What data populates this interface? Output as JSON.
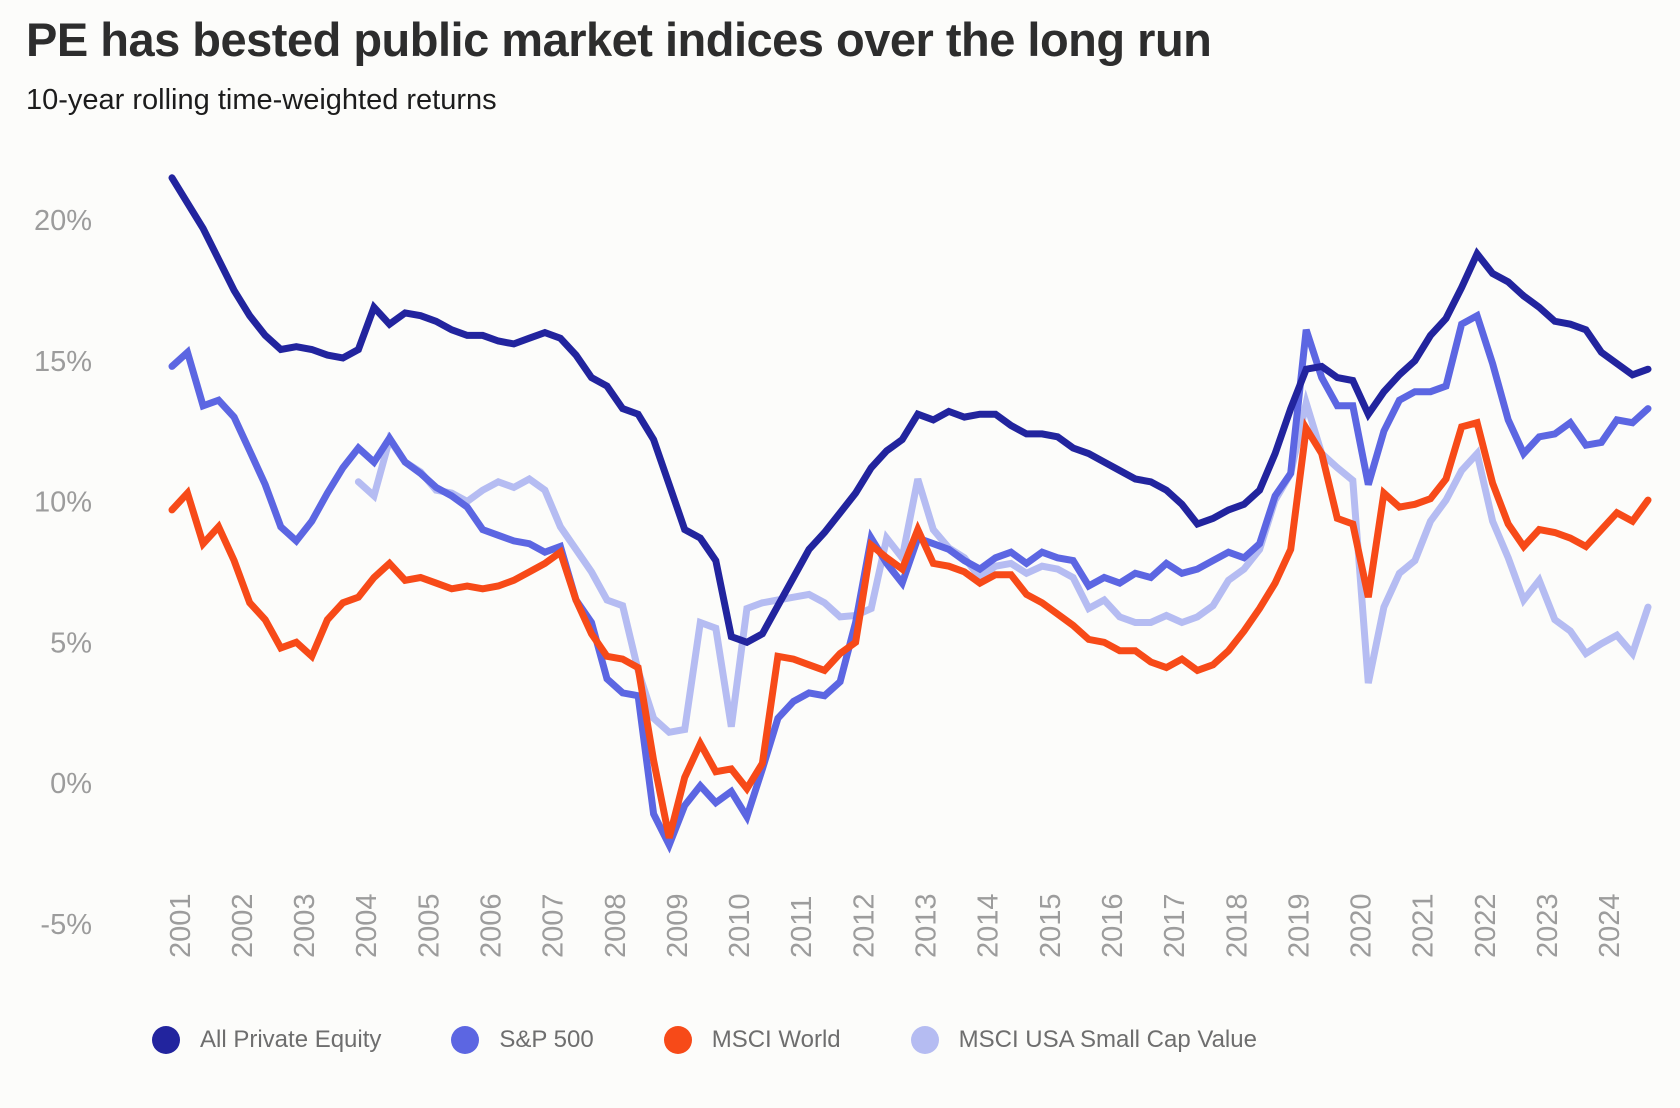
{
  "header": {
    "title": "PE has bested public market indices over the long run",
    "subtitle": "10-year rolling time-weighted returns"
  },
  "chart_data": {
    "type": "line",
    "title": "PE has bested public market indices over the long run",
    "subtitle": "10-year rolling time-weighted returns",
    "x_unit": "quarterly",
    "grid": false,
    "legend_position": "bottom",
    "ylim": [
      -5.5,
      22.5
    ],
    "y_axis": {
      "values": [
        20,
        15,
        10,
        5,
        0,
        -5
      ],
      "labels": [
        "20%",
        "15%",
        "10%",
        "5%",
        "0%",
        "-5%"
      ]
    },
    "x_axis": {
      "start_year": 2001,
      "end_year": 2024,
      "years": [
        2001,
        2002,
        2003,
        2004,
        2005,
        2006,
        2007,
        2008,
        2009,
        2010,
        2011,
        2012,
        2013,
        2014,
        2015,
        2016,
        2017,
        2018,
        2019,
        2020,
        2021,
        2022,
        2023,
        2024
      ]
    },
    "draw_order": [
      3,
      1,
      2,
      0
    ],
    "series": [
      {
        "id": "all-private-equity",
        "name": "All Private Equity",
        "color": "#22249e",
        "values": [
          21.5,
          20.6,
          19.7,
          18.6,
          17.5,
          16.6,
          15.9,
          15.4,
          15.5,
          15.4,
          15.2,
          15.1,
          15.4,
          16.9,
          16.3,
          16.7,
          16.6,
          16.4,
          16.1,
          15.9,
          15.9,
          15.7,
          15.6,
          15.8,
          16.0,
          15.8,
          15.2,
          14.4,
          14.1,
          13.3,
          13.1,
          12.2,
          10.6,
          9.0,
          8.7,
          7.9,
          5.2,
          5.0,
          5.3,
          6.3,
          7.3,
          8.3,
          8.9,
          9.6,
          10.3,
          11.2,
          11.8,
          12.2,
          13.1,
          12.9,
          13.2,
          13.0,
          13.1,
          13.1,
          12.7,
          12.4,
          12.4,
          12.3,
          11.9,
          11.7,
          11.4,
          11.1,
          10.8,
          10.7,
          10.4,
          9.9,
          9.2,
          9.4,
          9.7,
          9.9,
          10.4,
          11.7,
          13.3,
          14.7,
          14.8,
          14.4,
          14.3,
          13.1,
          13.9,
          14.5,
          15.0,
          15.9,
          16.5,
          17.6,
          18.8,
          18.1,
          17.8,
          17.3,
          16.9,
          16.4,
          16.3,
          16.1,
          15.3,
          14.9,
          14.5,
          14.7
        ]
      },
      {
        "id": "sp-500",
        "name": "S&P 500",
        "color": "#5c66e2",
        "values": [
          14.8,
          15.3,
          13.4,
          13.6,
          13.0,
          11.8,
          10.6,
          9.1,
          8.6,
          9.3,
          10.3,
          11.2,
          11.9,
          11.4,
          12.25,
          11.4,
          11.0,
          10.5,
          10.2,
          9.8,
          9.0,
          8.8,
          8.6,
          8.5,
          8.2,
          8.4,
          6.5,
          5.7,
          3.7,
          3.2,
          3.1,
          -1.1,
          -2.2,
          -0.8,
          -0.1,
          -0.7,
          -0.3,
          -1.2,
          0.5,
          2.3,
          2.9,
          3.2,
          3.1,
          3.6,
          5.7,
          8.7,
          7.8,
          7.1,
          8.7,
          8.5,
          8.3,
          7.9,
          7.6,
          8.0,
          8.2,
          7.8,
          8.2,
          8.0,
          7.9,
          7.0,
          7.3,
          7.1,
          7.45,
          7.3,
          7.8,
          7.45,
          7.6,
          7.9,
          8.2,
          8.0,
          8.5,
          10.2,
          11.0,
          16.1,
          14.4,
          13.4,
          13.4,
          10.6,
          12.5,
          13.6,
          13.9,
          13.9,
          14.1,
          16.3,
          16.6,
          14.9,
          12.9,
          11.7,
          12.3,
          12.4,
          12.8,
          12.0,
          12.1,
          12.9,
          12.8,
          13.3
        ]
      },
      {
        "id": "msci-world",
        "name": "MSCI World",
        "color": "#f74a18",
        "values": [
          9.7,
          10.3,
          8.5,
          9.1,
          7.9,
          6.4,
          5.8,
          4.8,
          5.0,
          4.5,
          5.8,
          6.4,
          6.6,
          7.3,
          7.8,
          7.2,
          7.3,
          7.1,
          6.9,
          7.0,
          6.9,
          7.0,
          7.2,
          7.5,
          7.8,
          8.2,
          6.5,
          5.3,
          4.5,
          4.4,
          4.1,
          0.8,
          -1.95,
          0.2,
          1.4,
          0.4,
          0.5,
          -0.2,
          0.7,
          4.5,
          4.4,
          4.2,
          4.0,
          4.6,
          5.0,
          8.45,
          8.0,
          7.6,
          9.0,
          7.8,
          7.7,
          7.5,
          7.1,
          7.4,
          7.4,
          6.7,
          6.4,
          6.0,
          5.6,
          5.1,
          5.0,
          4.7,
          4.7,
          4.3,
          4.1,
          4.4,
          4.0,
          4.2,
          4.7,
          5.4,
          6.2,
          7.1,
          8.3,
          12.6,
          11.7,
          9.4,
          9.2,
          6.6,
          10.3,
          9.8,
          9.9,
          10.1,
          10.8,
          12.65,
          12.8,
          10.65,
          9.2,
          8.4,
          9.0,
          8.9,
          8.7,
          8.4,
          9.0,
          9.6,
          9.3,
          10.05
        ]
      },
      {
        "id": "msci-usa-small-cap-value",
        "name": "MSCI USA Small Cap Value",
        "color": "#b5bcf2",
        "values": [
          null,
          null,
          null,
          null,
          null,
          null,
          null,
          null,
          null,
          null,
          null,
          null,
          10.7,
          10.2,
          12.2,
          11.4,
          11.05,
          10.4,
          10.3,
          10.0,
          10.4,
          10.7,
          10.5,
          10.8,
          10.4,
          9.1,
          8.3,
          7.5,
          6.5,
          6.3,
          4.0,
          2.3,
          1.8,
          1.9,
          5.7,
          5.5,
          2.0,
          6.2,
          6.4,
          6.5,
          6.6,
          6.7,
          6.4,
          5.9,
          5.95,
          6.2,
          8.7,
          8.0,
          10.8,
          9.0,
          8.35,
          8.0,
          7.3,
          7.7,
          7.8,
          7.45,
          7.7,
          7.6,
          7.3,
          6.2,
          6.5,
          5.9,
          5.7,
          5.7,
          5.95,
          5.7,
          5.9,
          6.3,
          7.2,
          7.6,
          8.3,
          10.05,
          11.0,
          13.5,
          11.7,
          11.2,
          10.75,
          3.55,
          6.25,
          7.45,
          7.9,
          9.3,
          10.05,
          11.1,
          11.7,
          9.3,
          8.0,
          6.5,
          7.2,
          5.8,
          5.4,
          4.6,
          4.95,
          5.25,
          4.6,
          6.25
        ]
      }
    ]
  }
}
